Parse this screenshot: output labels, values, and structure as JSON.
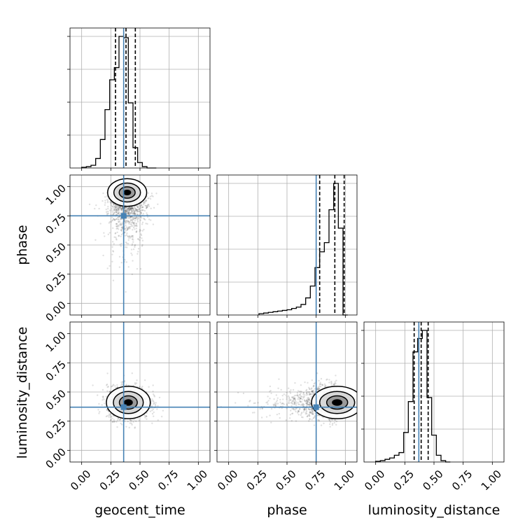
{
  "chart_data": {
    "type": "corner",
    "parameters": [
      "geocent_time",
      "phase",
      "luminosity_distance"
    ],
    "range": [
      -0.1,
      1.1
    ],
    "ticks": [
      0.0,
      0.25,
      0.5,
      0.75,
      1.0
    ],
    "tick_labels": [
      "0.00",
      "0.25",
      "0.50",
      "0.75",
      "1.00"
    ],
    "grid": true,
    "truth_color": "#4682b4",
    "truths": {
      "geocent_time": 0.36,
      "phase": 0.75,
      "luminosity_distance": 0.37
    },
    "histograms": {
      "geocent_time": {
        "bin_edges": [
          0.0,
          0.04,
          0.08,
          0.12,
          0.16,
          0.2,
          0.24,
          0.28,
          0.32,
          0.36,
          0.4,
          0.44,
          0.48,
          0.52,
          0.56,
          0.6,
          0.64
        ],
        "counts": [
          0.005,
          0.01,
          0.02,
          0.07,
          0.21,
          0.43,
          0.65,
          0.74,
          0.97,
          0.96,
          0.48,
          0.15,
          0.04,
          0.01,
          0.0,
          0.0
        ],
        "quantiles": [
          0.29,
          0.38,
          0.46
        ]
      },
      "phase": {
        "bin_edges": [
          0.26,
          0.3,
          0.34,
          0.38,
          0.42,
          0.46,
          0.5,
          0.54,
          0.58,
          0.62,
          0.66,
          0.7,
          0.74,
          0.78,
          0.82,
          0.86,
          0.9,
          0.94,
          0.98,
          1.02
        ],
        "counts": [
          0.01,
          0.015,
          0.02,
          0.025,
          0.03,
          0.035,
          0.04,
          0.05,
          0.06,
          0.08,
          0.13,
          0.22,
          0.36,
          0.48,
          0.55,
          0.8,
          1.0,
          0.66,
          0.0
        ],
        "quantiles": [
          0.78,
          0.91,
          0.99
        ]
      },
      "luminosity_distance": {
        "bin_edges": [
          0.0,
          0.04,
          0.08,
          0.12,
          0.16,
          0.2,
          0.24,
          0.28,
          0.32,
          0.36,
          0.4,
          0.44,
          0.48,
          0.52,
          0.56,
          0.6,
          0.64
        ],
        "counts": [
          0.005,
          0.01,
          0.02,
          0.03,
          0.05,
          0.07,
          0.22,
          0.45,
          0.82,
          0.92,
          0.98,
          0.48,
          0.2,
          0.05,
          0.01,
          0.0
        ],
        "quantiles": [
          0.33,
          0.39,
          0.45
        ]
      }
    },
    "scatter_2d": [
      {
        "x": "geocent_time",
        "y": "phase",
        "center": [
          0.39,
          0.95
        ],
        "spread": [
          0.08,
          0.12
        ]
      },
      {
        "x": "geocent_time",
        "y": "luminosity_distance",
        "center": [
          0.4,
          0.41
        ],
        "spread": [
          0.09,
          0.07
        ]
      },
      {
        "x": "phase",
        "y": "luminosity_distance",
        "center": [
          0.93,
          0.41
        ],
        "spread": [
          0.1,
          0.07
        ]
      }
    ]
  }
}
